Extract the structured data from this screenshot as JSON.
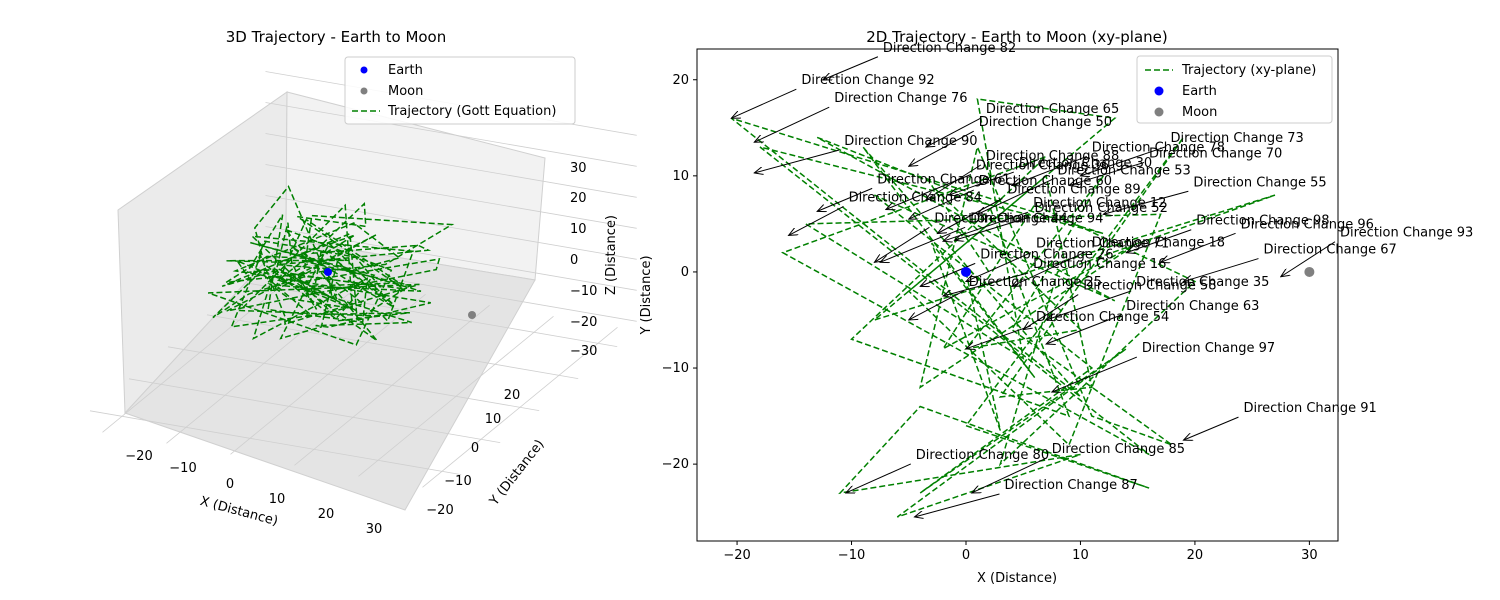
{
  "chart_data": [
    {
      "type": "line",
      "projection": "3d",
      "title": "3D Trajectory - Earth to Moon",
      "xlabel": "X (Distance)",
      "ylabel": "Y (Distance)",
      "zlabel": "Z (Distance)",
      "x_ticks": [
        "−20",
        "−10",
        "0",
        "10",
        "20",
        "30"
      ],
      "y_ticks": [
        "−20",
        "−10",
        "0",
        "10",
        "20"
      ],
      "z_ticks": [
        "30",
        "20",
        "10",
        "0",
        "−10",
        "−20",
        "−30"
      ],
      "legend_position": "top-right",
      "legend": [
        {
          "label": "Earth",
          "marker": "dot",
          "color": "#0000ff"
        },
        {
          "label": "Moon",
          "marker": "dot",
          "color": "#808080"
        },
        {
          "label": "Trajectory (Gott Equation)",
          "marker": "dashed-line",
          "color": "#008000"
        }
      ],
      "points": {
        "earth": {
          "x": 0,
          "y": 0,
          "z": 0
        },
        "moon": {
          "x": 30,
          "y": 0,
          "z": 0
        }
      },
      "grid": true
    },
    {
      "type": "line",
      "title": "2D Trajectory - Earth to Moon (xy-plane)",
      "xlabel": "X (Distance)",
      "ylabel": "Y (Distance)",
      "xlim": [
        -23.5,
        32.5
      ],
      "ylim": [
        -28,
        23.2
      ],
      "x_ticks": [
        -20,
        -10,
        0,
        10,
        20,
        30
      ],
      "y_ticks": [
        -20,
        -10,
        0,
        10,
        20
      ],
      "legend_position": "top-right",
      "legend": [
        {
          "label": "Trajectory (xy-plane)",
          "marker": "dashed-line",
          "color": "#008000"
        },
        {
          "label": "Earth",
          "marker": "dot",
          "color": "#0000ff"
        },
        {
          "label": "Moon",
          "marker": "dot",
          "color": "#808080"
        }
      ],
      "earth": [
        0,
        0
      ],
      "moon": [
        30,
        0
      ],
      "trajectory": {
        "x": [
          0,
          3,
          -3,
          6,
          -9,
          10,
          -20.5,
          12,
          -18,
          16,
          -16,
          7,
          -10,
          9,
          2,
          -13,
          13,
          -8,
          11,
          -4,
          14,
          -6,
          10,
          -11,
          -4,
          16,
          0,
          19,
          3,
          11,
          7,
          -5,
          9,
          17,
          -14,
          5,
          1,
          13,
          -8,
          27,
          8,
          3,
          20,
          6,
          -2,
          15,
          -4,
          1,
          11,
          18,
          4,
          12,
          6,
          0,
          10,
          -3,
          2
        ],
        "y": [
          0,
          -16.5,
          3,
          -11,
          13,
          -13,
          16,
          4,
          13,
          -19,
          2,
          12,
          -7,
          -15,
          7,
          14,
          -3,
          8,
          -10,
          -23,
          -8,
          -25.5,
          -19,
          -23,
          -14,
          -22.5,
          -16,
          14,
          -13,
          -12,
          10,
          -2,
          -18,
          6,
          5,
          -9,
          18,
          16,
          -5,
          8,
          0,
          -20,
          -1,
          7,
          -8,
          3,
          -12,
          13,
          -15,
          -18,
          -6,
          10,
          1,
          -8,
          -6,
          9,
          0
        ]
      },
      "annotations": [
        {
          "text": "Direction Change 82",
          "xy": [
            -12.5,
            20
          ]
        },
        {
          "text": "Direction Change 92",
          "xy": [
            -20.5,
            16
          ]
        },
        {
          "text": "Direction Change 76",
          "xy": [
            -18.5,
            13.5
          ]
        },
        {
          "text": "Direction Change 90",
          "xy": [
            -18.5,
            10.3
          ]
        },
        {
          "text": "Direction Change 65",
          "xy": [
            -3.5,
            13
          ]
        },
        {
          "text": "Direction Change 50",
          "xy": [
            -5,
            11
          ]
        },
        {
          "text": "Direction Change 70",
          "xy": [
            9,
            9
          ]
        },
        {
          "text": "Direction Change 73",
          "xy": [
            10,
            10
          ]
        },
        {
          "text": "Direction Change 88",
          "xy": [
            -3.5,
            7.5
          ]
        },
        {
          "text": "Direction Change 30",
          "xy": [
            -1.5,
            8
          ]
        },
        {
          "text": "Direction Change 78",
          "xy": [
            4,
            9
          ]
        },
        {
          "text": "Direction Change 36",
          "xy": [
            -7,
            6.5
          ]
        },
        {
          "text": "Direction Change 61",
          "xy": [
            -13,
            6.3
          ]
        },
        {
          "text": "Direction Change 60",
          "xy": [
            -5,
            5.5
          ]
        },
        {
          "text": "Direction Change 53",
          "xy": [
            1,
            6
          ]
        },
        {
          "text": "Direction Change 55",
          "xy": [
            12,
            6
          ]
        },
        {
          "text": "Direction Change 84",
          "xy": [
            -15.5,
            3.8
          ]
        },
        {
          "text": "Direction Change 89",
          "xy": [
            -2.5,
            4
          ]
        },
        {
          "text": "Direction Change 52",
          "xy": [
            -1,
            3.3
          ]
        },
        {
          "text": "Direction Change 12",
          "xy": [
            -2,
            3.2
          ]
        },
        {
          "text": "Direction Change 44",
          "xy": [
            -8,
            1
          ]
        },
        {
          "text": "Direction Change 98",
          "xy": [
            14,
            2
          ]
        },
        {
          "text": "Direction Change 96",
          "xy": [
            17,
            1
          ]
        },
        {
          "text": "Direction Change 94",
          "xy": [
            -7.5,
            1
          ]
        },
        {
          "text": "Direction Change 26",
          "xy": [
            -4,
            -1.5
          ]
        },
        {
          "text": "Direction Change 71",
          "xy": [
            0,
            -1
          ]
        },
        {
          "text": "Direction Change 18",
          "xy": [
            4,
            -1.5
          ]
        },
        {
          "text": "Direction Change 16",
          "xy": [
            -2,
            -2.5
          ]
        },
        {
          "text": "Direction Change 25",
          "xy": [
            -5,
            -5
          ]
        },
        {
          "text": "Direction Change 93",
          "xy": [
            27.5,
            -0.5
          ]
        },
        {
          "text": "Direction Change 67",
          "xy": [
            19,
            -1
          ]
        },
        {
          "text": "Direction Change 35",
          "xy": [
            7,
            -5
          ]
        },
        {
          "text": "Direction Change 58",
          "xy": [
            5,
            -6
          ]
        },
        {
          "text": "Direction Change 54",
          "xy": [
            0,
            -8
          ]
        },
        {
          "text": "Direction Change 63",
          "xy": [
            7,
            -7.5
          ]
        },
        {
          "text": "Direction Change 97",
          "xy": [
            7.5,
            -12.5
          ]
        },
        {
          "text": "Direction Change 91",
          "xy": [
            19,
            -17.5
          ]
        },
        {
          "text": "Direction Change 80",
          "xy": [
            -10.5,
            -23
          ]
        },
        {
          "text": "Direction Change 85",
          "xy": [
            0.5,
            -23
          ]
        },
        {
          "text": "Direction Change 87",
          "xy": [
            -4.5,
            -25.5
          ]
        }
      ]
    }
  ]
}
